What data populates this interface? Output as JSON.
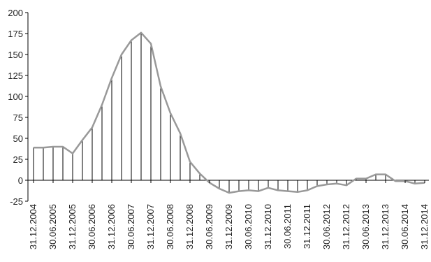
{
  "chart_data": {
    "type": "line",
    "categories": [
      "31.12.2004",
      null,
      "30.06.2005",
      null,
      "31.12.2005",
      null,
      "30.06.2006",
      null,
      "31.12.2006",
      null,
      "30.06.2007",
      null,
      "31.12.2007",
      null,
      "30.06.2008",
      null,
      "31.12.2008",
      null,
      "30.06.2009",
      null,
      "31.12.2009",
      null,
      "30.06.2010",
      null,
      "31.12.2010",
      null,
      "30.06.2011",
      null,
      "31.12.2011",
      null,
      "30.06.2012",
      null,
      "31.12.2012",
      null,
      "30.06.2013",
      null,
      "31.12.2013",
      null,
      "30.06.2014",
      null,
      "31.12.2014"
    ],
    "values": [
      39,
      39,
      40,
      40,
      32,
      48,
      63,
      90,
      122,
      150,
      167,
      176,
      163,
      112,
      80,
      56,
      22,
      8,
      -3,
      -10,
      -15,
      -13,
      -12,
      -13,
      -9,
      -12,
      -13,
      -14,
      -12,
      -7,
      -5,
      -4,
      -6,
      2,
      2,
      7,
      7,
      -1,
      -1,
      -4,
      -3
    ],
    "color": "#999999",
    "drop_line_color": "#000000",
    "ylim": [
      -25,
      200
    ],
    "yticks": [
      -25,
      0,
      25,
      50,
      75,
      100,
      125,
      150,
      175,
      200
    ]
  }
}
